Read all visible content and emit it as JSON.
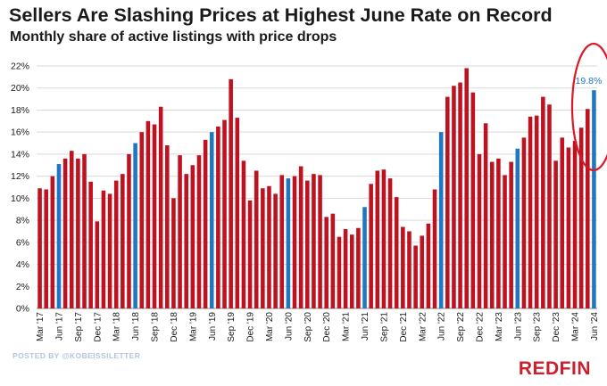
{
  "title": "Sellers Are Slashing Prices at Highest June Rate on Record",
  "subtitle": "Monthly share of active listings with price drops",
  "credit": "POSTED BY @KOBEISSILETTER",
  "brand": "REDFIN",
  "colors": {
    "bar": "#bf1220",
    "june": "#1f77c2",
    "grid": "#d9d9d9",
    "circle": "#d71a26",
    "text": "#1a1a1a"
  },
  "chart_data": {
    "type": "bar",
    "title": "Sellers Are Slashing Prices at Highest June Rate on Record",
    "subtitle": "Monthly share of active listings with price drops",
    "xlabel": "",
    "ylabel": "",
    "ylim": [
      0,
      22
    ],
    "yticks": [
      "0%",
      "2%",
      "4%",
      "6%",
      "8%",
      "10%",
      "12%",
      "14%",
      "16%",
      "18%",
      "20%",
      "22%"
    ],
    "grid": true,
    "start_month": "Mar 2017",
    "highlight": "June of each year",
    "x_tick_labels": [
      "Mar '17",
      "Jun '17",
      "Sep '17",
      "Dec '17",
      "Mar '18",
      "Jun '18",
      "Sep '18",
      "Dec '18",
      "Mar '19",
      "Jun '19",
      "Sep '19",
      "Dec '19",
      "Mar '20",
      "Jun '20",
      "Sep '20",
      "Dec '20",
      "Mar '21",
      "Jun '21",
      "Sep '21",
      "Dec '21",
      "Mar '22",
      "Jun '22",
      "Sep '22",
      "Dec '22",
      "Mar '23",
      "Jun '23",
      "Sep '23",
      "Dec '23",
      "Mar '24",
      "Jun '24"
    ],
    "values": [
      10.9,
      10.8,
      12.0,
      13.1,
      13.6,
      14.3,
      13.6,
      14.0,
      11.5,
      7.9,
      10.7,
      10.4,
      11.6,
      12.2,
      14.0,
      15.0,
      16.0,
      17.0,
      16.7,
      18.3,
      14.8,
      10.0,
      13.9,
      12.2,
      13.0,
      13.9,
      15.3,
      16.0,
      16.5,
      17.1,
      20.8,
      17.3,
      13.4,
      9.8,
      12.5,
      10.9,
      11.1,
      10.4,
      12.1,
      11.8,
      12.0,
      12.9,
      11.6,
      12.2,
      12.1,
      8.3,
      8.6,
      6.5,
      7.2,
      6.7,
      7.3,
      9.2,
      11.3,
      12.5,
      12.6,
      11.8,
      10.1,
      7.4,
      7.0,
      5.7,
      6.6,
      7.7,
      10.8,
      16.0,
      19.2,
      20.2,
      20.5,
      21.8,
      19.6,
      14.0,
      16.8,
      13.3,
      13.6,
      12.1,
      13.3,
      14.5,
      15.5,
      17.4,
      17.5,
      19.2,
      18.5,
      13.4,
      15.5,
      14.6,
      15.2,
      16.4,
      18.1,
      19.8
    ],
    "annotation": "19.8%"
  }
}
